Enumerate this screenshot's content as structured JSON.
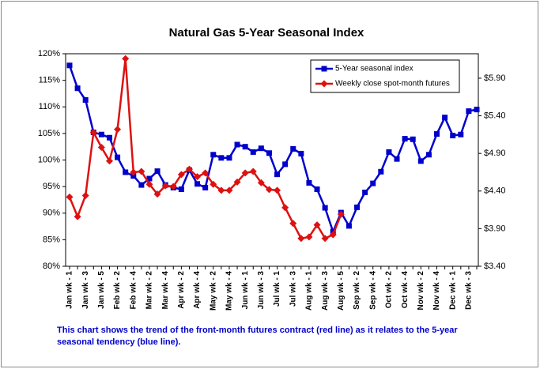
{
  "chart_data": {
    "type": "line",
    "title": "Natural Gas 5-Year  Seasonal Index",
    "note": [
      "This chart shows the trend of the front-month futures contract (red line) as it relates to the 5-year",
      "seasonal tendency (blue line)."
    ],
    "categories": [
      "Jan wk - 1",
      null,
      "Jan wk - 3",
      null,
      "Jan wk - 5",
      null,
      "Feb wk - 2",
      null,
      "Feb wk - 4",
      null,
      "Mar wk - 2",
      null,
      "Mar wk - 4",
      null,
      "Apr wk - 2",
      null,
      "Apr wk - 4",
      null,
      "May wk - 2",
      null,
      "May wk - 4",
      null,
      "Jun wk - 1",
      null,
      "Jun wk - 3",
      null,
      "Jul wk - 1",
      null,
      "Jul wk - 3",
      null,
      "Aug wk - 1",
      null,
      "Aug wk - 3",
      null,
      "Aug wk - 5",
      null,
      "Sep wk - 2",
      null,
      "Sep wk - 4",
      null,
      "Oct wk - 2",
      null,
      "Oct wk - 4",
      null,
      "Nov wk - 2",
      null,
      "Nov wk - 4",
      null,
      "Dec wk - 1",
      null,
      "Dec wk - 3",
      null
    ],
    "series": [
      {
        "name": "5-Year seasonal index",
        "color": "#0000cc",
        "marker": "square",
        "values": [
          117.8,
          113.5,
          111.3,
          105.2,
          104.8,
          104.2,
          100.5,
          97.7,
          97.0,
          95.3,
          96.5,
          97.9,
          95.3,
          94.8,
          94.5,
          98.1,
          95.5,
          94.8,
          101.0,
          100.4,
          100.4,
          102.9,
          102.5,
          101.5,
          102.2,
          101.3,
          97.3,
          99.2,
          102.1,
          101.2,
          95.7,
          94.5,
          91.0,
          86.5,
          90.1,
          87.6,
          91.1,
          93.9,
          95.6,
          97.8,
          101.5,
          100.2,
          104.0,
          103.9,
          99.8,
          101.0,
          104.9,
          108.0,
          104.6,
          104.8,
          109.2,
          109.5
        ]
      },
      {
        "name": "Weekly close spot-month futures",
        "color": "#dd1111",
        "marker": "diamond",
        "axis": "y2",
        "values": [
          4.32,
          4.06,
          4.34,
          5.18,
          4.98,
          4.8,
          5.22,
          6.16,
          4.65,
          4.66,
          4.49,
          4.36,
          4.47,
          4.46,
          4.62,
          4.69,
          4.59,
          4.64,
          4.49,
          4.41,
          4.41,
          4.52,
          4.64,
          4.66,
          4.51,
          4.42,
          4.41,
          4.18,
          3.97,
          3.77,
          3.79,
          3.95,
          3.77,
          3.82,
          4.09,
          null,
          null,
          null,
          null,
          null,
          null,
          null,
          null,
          null,
          null,
          null,
          null,
          null,
          null,
          null,
          null,
          null
        ]
      }
    ],
    "ylim": [
      80,
      120
    ],
    "yticks": [
      {
        "value": 80,
        "label": "80%"
      },
      {
        "value": 85,
        "label": "85%"
      },
      {
        "value": 90,
        "label": "90%"
      },
      {
        "value": 95,
        "label": "95%"
      },
      {
        "value": 100,
        "label": "100%"
      },
      {
        "value": 105,
        "label": "105%"
      },
      {
        "value": 110,
        "label": "110%"
      },
      {
        "value": 115,
        "label": "115%"
      },
      {
        "value": 120,
        "label": "120%"
      }
    ],
    "y2lim": [
      3.4,
      6.225
    ],
    "y2ticks": [
      {
        "value": 3.4,
        "label": "$3.40"
      },
      {
        "value": 3.9,
        "label": "$3.90"
      },
      {
        "value": 4.4,
        "label": "$4.40"
      },
      {
        "value": 4.9,
        "label": "$4.90"
      },
      {
        "value": 5.4,
        "label": "$5.40"
      },
      {
        "value": 5.9,
        "label": "$5.90"
      }
    ],
    "grid": false,
    "legend": "upper right"
  }
}
